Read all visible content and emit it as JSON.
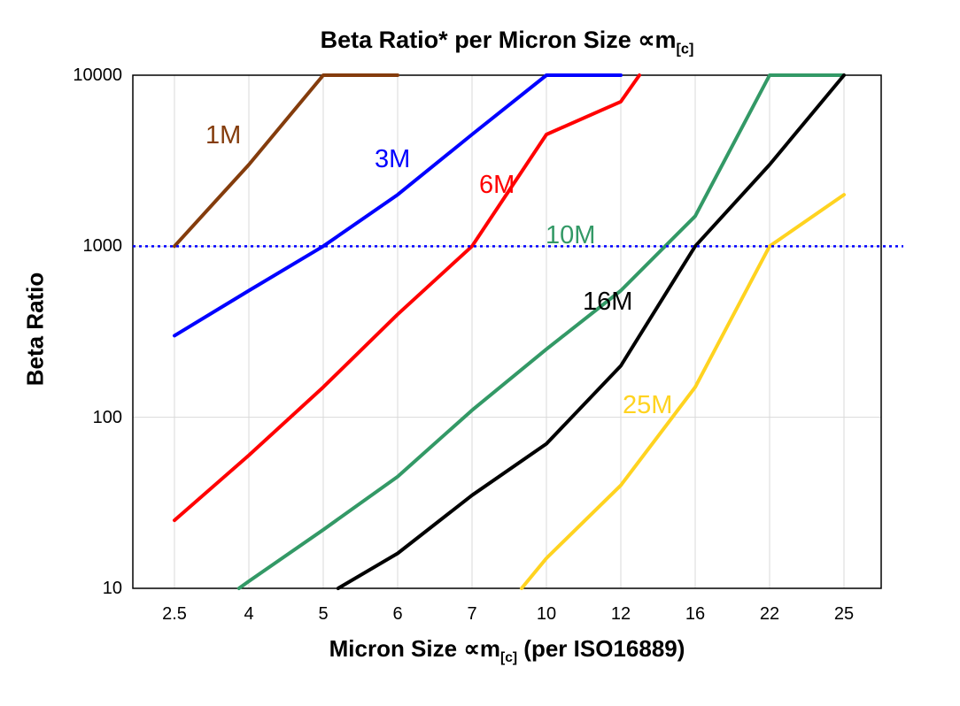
{
  "title": {
    "main": "Beta Ratio* per Micron Size ",
    "prop": "∝m",
    "sub": "[c]"
  },
  "y_axis": {
    "label": "Beta Ratio",
    "ticks": [
      "10000",
      "1000",
      "100",
      "10"
    ]
  },
  "x_axis": {
    "pre": "Micron Size ",
    "prop": "∝m",
    "sub": "[c]",
    "post": " (per ISO16889)",
    "ticks": [
      "2.5",
      "4",
      "5",
      "6",
      "7",
      "10",
      "12",
      "16",
      "22",
      "25"
    ]
  },
  "colors": {
    "grid": "#d9d9d9",
    "border": "#000000",
    "reference": "#0000ff"
  },
  "chart_data": {
    "type": "line",
    "title": "Beta Ratio* per Micron Size ∝m[c]",
    "xlabel": "Micron Size ∝m[c] (per ISO16889)",
    "ylabel": "Beta Ratio",
    "x_scale": "ordinal",
    "y_scale": "log",
    "ylim": [
      10,
      10000
    ],
    "grid": true,
    "categories": [
      2.5,
      4,
      5,
      6,
      7,
      10,
      12,
      16,
      22,
      25
    ],
    "y_gridlines": [
      100,
      1000
    ],
    "reference_line": {
      "y": 1000,
      "style": "dotted",
      "color": "#0000ff"
    },
    "series": [
      {
        "name": "1M",
        "color": "#843c0c",
        "points": [
          [
            2.5,
            1000
          ],
          [
            4,
            3000
          ],
          [
            5,
            10000
          ],
          [
            6,
            10000
          ]
        ],
        "label_pos": [
          232,
          138
        ]
      },
      {
        "name": "3M",
        "color": "#0000ff",
        "points": [
          [
            2.5,
            300
          ],
          [
            4,
            550
          ],
          [
            5,
            1000
          ],
          [
            6,
            2000
          ],
          [
            7,
            4500
          ],
          [
            10,
            10000
          ],
          [
            12,
            10000
          ]
        ],
        "label_pos": [
          423,
          165
        ]
      },
      {
        "name": "6M",
        "color": "#ff0000",
        "points": [
          [
            2.5,
            25
          ],
          [
            4,
            60
          ],
          [
            5,
            150
          ],
          [
            6,
            400
          ],
          [
            7,
            1000
          ],
          [
            10,
            4500
          ],
          [
            12,
            7000
          ],
          [
            13,
            10000
          ]
        ],
        "label_pos": [
          541,
          194
        ]
      },
      {
        "name": "10M",
        "color": "#339966",
        "points": [
          [
            3.8,
            10
          ],
          [
            4,
            11
          ],
          [
            5,
            22
          ],
          [
            6,
            45
          ],
          [
            7,
            110
          ],
          [
            10,
            250
          ],
          [
            12,
            550
          ],
          [
            16,
            1500
          ],
          [
            22,
            10000
          ],
          [
            25,
            10000
          ]
        ],
        "label_pos": [
          616,
          251
        ]
      },
      {
        "name": "16M",
        "color": "#000000",
        "points": [
          [
            5.2,
            10
          ],
          [
            6,
            16
          ],
          [
            7,
            35
          ],
          [
            10,
            70
          ],
          [
            12,
            200
          ],
          [
            16,
            1000
          ],
          [
            22,
            3000
          ],
          [
            25,
            10000
          ]
        ],
        "label_pos": [
          658,
          326
        ]
      },
      {
        "name": "25M",
        "color": "#ffd320",
        "points": [
          [
            9,
            10
          ],
          [
            10,
            15
          ],
          [
            12,
            40
          ],
          [
            16,
            150
          ],
          [
            22,
            1000
          ],
          [
            25,
            2000
          ]
        ],
        "label_pos": [
          703,
          443
        ]
      }
    ]
  }
}
